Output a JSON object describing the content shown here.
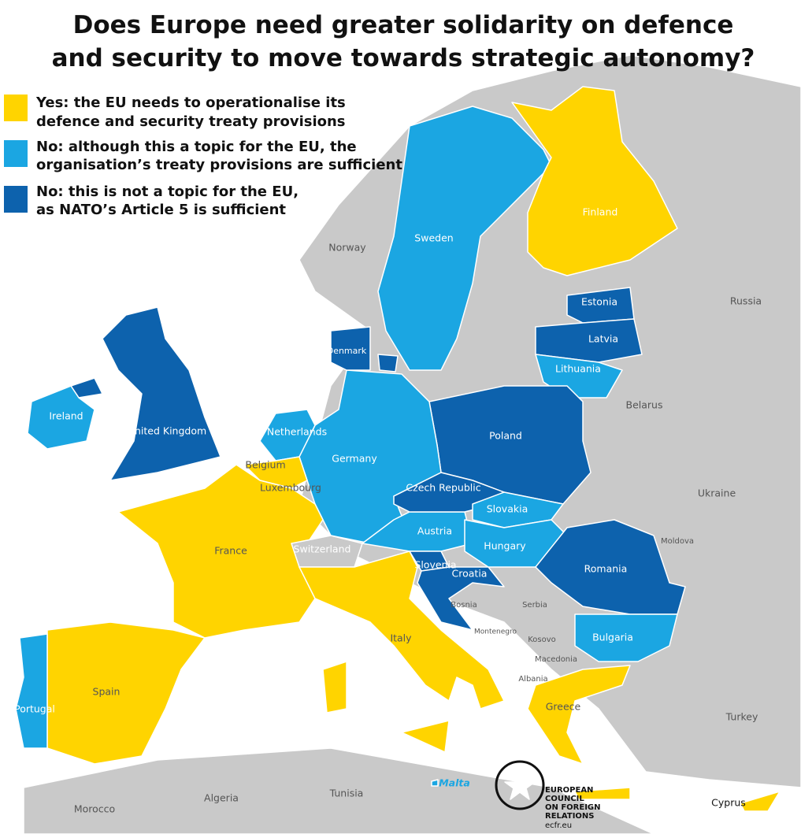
{
  "header": {
    "title_lines": [
      "Does Europe need greater solidarity on defence",
      "and security to move towards strategic autonomy?"
    ]
  },
  "legend": [
    {
      "lines": [
        "Yes: the EU needs to operationalise its",
        "defence and security treaty provisions"
      ],
      "color": "#ffd400"
    },
    {
      "lines": [
        "No: although this a topic for the EU, the",
        "organisation’s treaty provisions are sufficient"
      ],
      "color": "#1ba6e2"
    },
    {
      "lines": [
        "No: this is not a topic for the EU,",
        "as NATO’s Article 5 is sufficient"
      ],
      "color": "#0d62ad"
    }
  ],
  "map": {
    "labels": [
      "Norway",
      "Sweden",
      "Finland",
      "Russia",
      "Estonia",
      "Latvia",
      "Lithuania",
      "Belarus",
      "Denmark",
      "Ireland",
      "United Kingdom",
      "Netherlands",
      "Germany",
      "Poland",
      "Belgium",
      "Luxembourg",
      "Czech Republic",
      "Ukraine",
      "Slovakia",
      "Austria",
      "Moldova",
      "France",
      "Switzerland",
      "Hungary",
      "Slovenia",
      "Croatia",
      "Romania",
      "Bosnia",
      "Serbia",
      "Montenegro",
      "Kosovo",
      "Bulgaria",
      "Italy",
      "Macedonia",
      "Albania",
      "Spain",
      "Portugal",
      "Greece",
      "Turkey",
      "Malta",
      "Tunisia",
      "Algeria",
      "Morocco",
      "Cyprus"
    ]
  },
  "logo": {
    "lines": [
      "EUROPEAN",
      "COUNCIL",
      "ON FOREIGN",
      "RELATIONS"
    ],
    "url": "ecfr.eu"
  }
}
